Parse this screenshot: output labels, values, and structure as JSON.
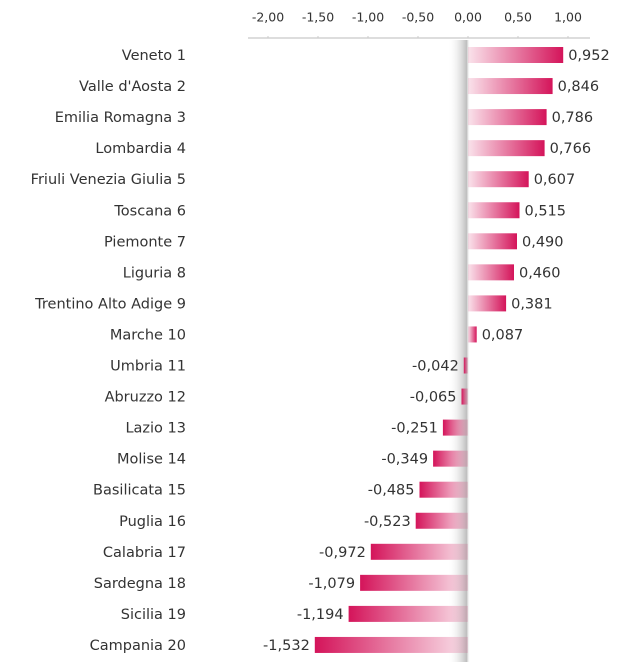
{
  "chart_data": {
    "type": "bar",
    "orientation": "horizontal",
    "categories": [
      "Veneto 1",
      "Valle d'Aosta 2",
      "Emilia Romagna 3",
      "Lombardia 4",
      "Friuli Venezia Giulia 5",
      "Toscana 6",
      "Piemonte 7",
      "Liguria 8",
      "Trentino Alto Adige 9",
      "Marche 10",
      "Umbria 11",
      "Abruzzo 12",
      "Lazio 13",
      "Molise 14",
      "Basilicata 15",
      "Puglia 16",
      "Calabria 17",
      "Sardegna 18",
      "Sicilia 19",
      "Campania 20"
    ],
    "values": [
      0.952,
      0.846,
      0.786,
      0.766,
      0.607,
      0.515,
      0.49,
      0.46,
      0.381,
      0.087,
      -0.042,
      -0.065,
      -0.251,
      -0.349,
      -0.485,
      -0.523,
      -0.972,
      -1.079,
      -1.194,
      -1.532
    ],
    "value_labels": [
      "0,952",
      "0,846",
      "0,786",
      "0,766",
      "0,607",
      "0,515",
      "0,490",
      "0,460",
      "0,381",
      "0,087",
      "-0,042",
      "-0,065",
      "-0,251",
      "-0,349",
      "-0,485",
      "-0,523",
      "-0,972",
      "-1,079",
      "-1,194",
      "-1,532"
    ],
    "color": "#d4145a",
    "xlim": [
      -2.2,
      1.2
    ],
    "xticks": [
      {
        "value": -2,
        "label": "-2,00"
      },
      {
        "value": -1.5,
        "label": "-1,50"
      },
      {
        "value": -1,
        "label": "-1,00"
      },
      {
        "value": -0.5,
        "label": "-0,50"
      },
      {
        "value": 0,
        "label": "0,00"
      },
      {
        "value": 0.5,
        "label": "0,50"
      },
      {
        "value": 1,
        "label": "1,00"
      }
    ]
  }
}
